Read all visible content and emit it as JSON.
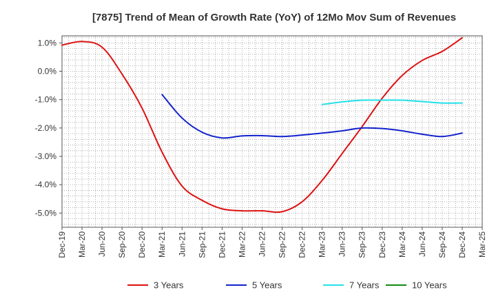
{
  "chart_data": {
    "type": "line",
    "title": "[7875]  Trend of Mean of Growth Rate (YoY) of 12Mo Mov Sum of Revenues",
    "xlabel": "",
    "ylabel": "",
    "ylim": [
      -5.5,
      1.25
    ],
    "y_ticks": [
      1.0,
      0.0,
      -1.0,
      -2.0,
      -3.0,
      -4.0,
      -5.0
    ],
    "y_tick_labels": [
      "1.0%",
      "0.0%",
      "-1.0%",
      "-2.0%",
      "-3.0%",
      "-4.0%",
      "-5.0%"
    ],
    "categories": [
      "Dec-19",
      "Mar-20",
      "Jun-20",
      "Sep-20",
      "Dec-20",
      "Mar-21",
      "Jun-21",
      "Sep-21",
      "Dec-21",
      "Mar-22",
      "Jun-22",
      "Sep-22",
      "Dec-22",
      "Mar-23",
      "Jun-23",
      "Sep-23",
      "Dec-23",
      "Mar-24",
      "Jun-24",
      "Sep-24",
      "Dec-24",
      "Mar-25"
    ],
    "grid": true,
    "legend_position": "bottom",
    "series": [
      {
        "name": "3 Years",
        "color": "#dd1111",
        "values": [
          0.92,
          1.05,
          0.85,
          -0.1,
          -1.3,
          -2.85,
          -4.05,
          -4.55,
          -4.85,
          -4.92,
          -4.92,
          -4.95,
          -4.6,
          -3.85,
          -2.9,
          -1.95,
          -0.95,
          -0.15,
          0.38,
          0.7,
          1.18,
          null
        ]
      },
      {
        "name": "5 Years",
        "color": "#1122cc",
        "values": [
          null,
          null,
          null,
          null,
          null,
          -0.82,
          -1.65,
          -2.15,
          -2.35,
          -2.28,
          -2.27,
          -2.3,
          -2.25,
          -2.18,
          -2.1,
          -2.0,
          -2.02,
          -2.1,
          -2.22,
          -2.3,
          -2.18,
          null
        ]
      },
      {
        "name": "7 Years",
        "color": "#22e0e8",
        "values": [
          null,
          null,
          null,
          null,
          null,
          null,
          null,
          null,
          null,
          null,
          null,
          null,
          null,
          -1.17,
          -1.08,
          -1.02,
          -1.02,
          -1.02,
          -1.07,
          -1.12,
          -1.12,
          null
        ]
      },
      {
        "name": "10 Years",
        "color": "#118811",
        "values": [
          null,
          null,
          null,
          null,
          null,
          null,
          null,
          null,
          null,
          null,
          null,
          null,
          null,
          null,
          null,
          null,
          null,
          null,
          null,
          null,
          null,
          null
        ]
      }
    ]
  }
}
